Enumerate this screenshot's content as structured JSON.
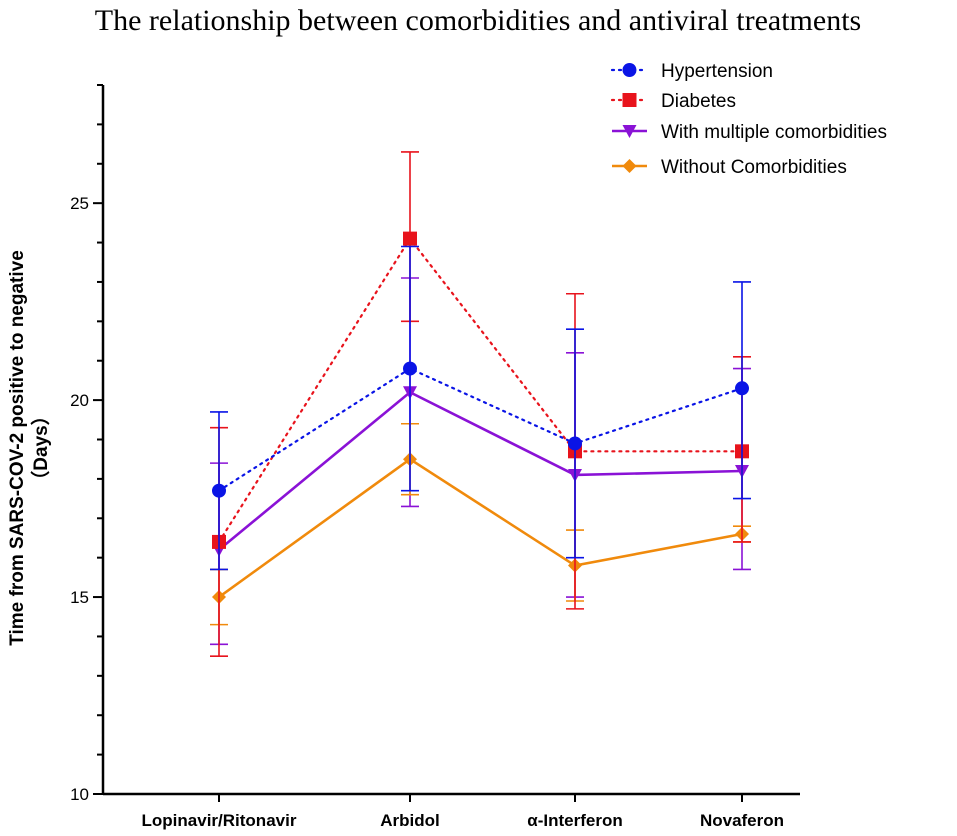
{
  "chart_data": {
    "type": "line",
    "title": "The relationship between comorbidities and antiviral treatments",
    "xlabel": "",
    "ylabel": "Time from SARS-COV-2 positive to negative",
    "ylabel_unit": "（Days）",
    "ylim": [
      10,
      28
    ],
    "yticks": [
      10,
      15,
      20,
      25
    ],
    "categories": [
      "Lopinavir/Ritonavir",
      "Arbidol",
      "α-Interferon",
      "Novaferon"
    ],
    "legend_position": "top-right",
    "series": [
      {
        "name": "Hypertension",
        "color": "#0a14e6",
        "line_style": "dotted",
        "marker": "circle",
        "values": [
          17.7,
          20.8,
          18.9,
          20.3
        ],
        "error_upper": [
          19.7,
          23.9,
          21.8,
          23.0
        ],
        "error_lower": [
          15.7,
          17.7,
          16.0,
          17.5
        ]
      },
      {
        "name": "Diabetes",
        "color": "#e8131c",
        "line_style": "dotted",
        "marker": "square",
        "values": [
          16.4,
          24.1,
          18.7,
          18.7
        ],
        "error_upper": [
          19.3,
          26.3,
          22.7,
          21.1
        ],
        "error_lower": [
          13.5,
          22.0,
          14.7,
          16.4
        ]
      },
      {
        "name": "With multiple comorbidities",
        "color": "#8a12d6",
        "line_style": "solid",
        "marker": "triangle-down",
        "values": [
          16.2,
          20.2,
          18.1,
          18.2
        ],
        "error_upper": [
          18.4,
          23.1,
          21.2,
          20.8
        ],
        "error_lower": [
          13.8,
          17.3,
          15.0,
          15.7
        ]
      },
      {
        "name": "Without Comorbidities",
        "color": "#f08a0c",
        "line_style": "solid",
        "marker": "diamond",
        "values": [
          15.0,
          18.5,
          15.8,
          16.6
        ],
        "error_upper": [
          15.7,
          19.4,
          16.7,
          16.8
        ],
        "error_lower": [
          14.3,
          17.6,
          14.9,
          16.4
        ]
      }
    ]
  }
}
